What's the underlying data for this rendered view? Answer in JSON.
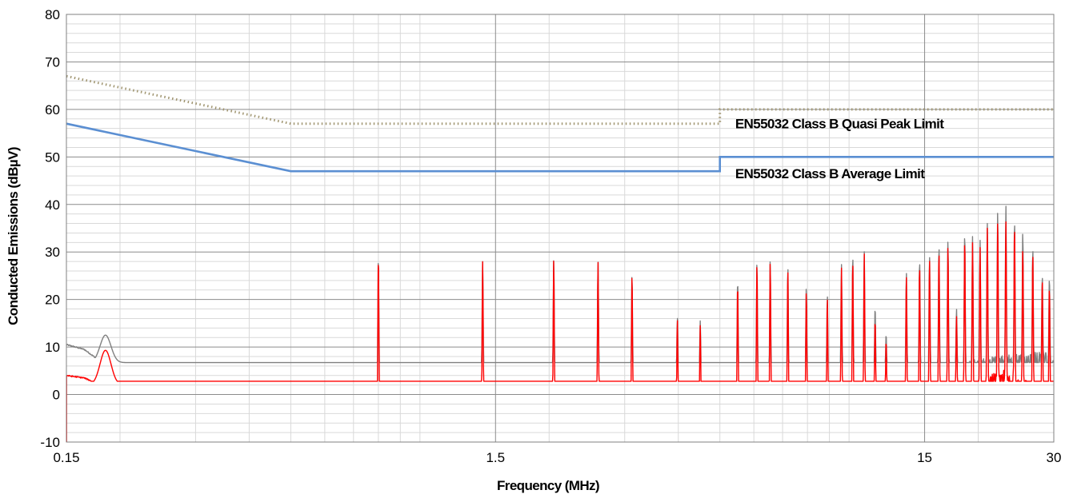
{
  "chart_data": {
    "type": "line",
    "xlabel": "Frequency (MHz)",
    "ylabel": "Conducted Emissions (dBµV)",
    "x_scale": "log",
    "xlim": [
      0.15,
      30
    ],
    "ylim": [
      -10,
      80
    ],
    "x_ticks": [
      0.15,
      1.5,
      15,
      30
    ],
    "x_tick_labels": [
      "0.15",
      "1.5",
      "15",
      "30"
    ],
    "y_ticks": [
      -10,
      0,
      10,
      20,
      30,
      40,
      50,
      60,
      70,
      80
    ],
    "y_tick_labels": [
      "-10",
      "0",
      "10",
      "20",
      "30",
      "40",
      "50",
      "60",
      "70",
      "80"
    ],
    "grid": true,
    "annotations": [
      {
        "text": "EN55032 Class B Quasi Peak Limit",
        "x": 5.2,
        "y": 57
      },
      {
        "text": "EN55032 Class B Average Limit",
        "x": 5.2,
        "y": 46.5
      }
    ],
    "series": [
      {
        "color": "#a09570",
        "style": "dotted",
        "points": [
          [
            0.15,
            67
          ],
          [
            0.5,
            57
          ],
          [
            5,
            57
          ],
          [
            5,
            60
          ],
          [
            30,
            60
          ]
        ]
      },
      {
        "color": "#5b8fd2",
        "style": "solid",
        "points": [
          [
            0.15,
            57
          ],
          [
            0.5,
            47
          ],
          [
            5,
            47
          ],
          [
            5,
            50
          ],
          [
            30,
            50
          ]
        ]
      },
      {
        "color": "#808080",
        "style": "solid",
        "baseline": [
          [
            0.15,
            10.5
          ],
          [
            0.165,
            9.5
          ],
          [
            0.18,
            7
          ],
          [
            0.22,
            5
          ],
          [
            0.3,
            3.5
          ],
          [
            0.5,
            2.7
          ],
          [
            1.0,
            2.8
          ],
          [
            2.0,
            3.5
          ],
          [
            2.5,
            3.8
          ],
          [
            4.0,
            2.6
          ],
          [
            8.0,
            3.0
          ],
          [
            12.0,
            3.5
          ],
          [
            16.0,
            4.5
          ],
          [
            20.0,
            5.5
          ],
          [
            25.0,
            6
          ],
          [
            30.0,
            6
          ]
        ],
        "peaks": [
          [
            0.185,
            12.5
          ],
          [
            0.255,
            4.5
          ],
          [
            0.3,
            6.5
          ],
          [
            0.36,
            3.5
          ],
          [
            0.42,
            3.8
          ]
        ],
        "spurs": [
          [
            0.8,
            29.2
          ],
          [
            1.4,
            28
          ],
          [
            2.05,
            28.5
          ],
          [
            2.6,
            28
          ],
          [
            3.12,
            25.3
          ],
          [
            3.98,
            16.2
          ],
          [
            4.5,
            15.5
          ],
          [
            5.5,
            24.2
          ],
          [
            6.1,
            28
          ],
          [
            6.55,
            28.4
          ],
          [
            7.2,
            27
          ],
          [
            7.95,
            22.7
          ],
          [
            8.9,
            21
          ],
          [
            9.6,
            27.5
          ],
          [
            10.2,
            29.5
          ],
          [
            10.85,
            30.1
          ],
          [
            11.5,
            18.5
          ],
          [
            12.2,
            12.8
          ],
          [
            13.6,
            25.8
          ],
          [
            14.6,
            28.5
          ],
          [
            15.4,
            29.2
          ],
          [
            16.2,
            31.6
          ],
          [
            17.0,
            32.7
          ],
          [
            17.8,
            18
          ],
          [
            18.6,
            34.3
          ],
          [
            19.4,
            33.3
          ],
          [
            20.2,
            32.5
          ],
          [
            21.0,
            36
          ],
          [
            22.2,
            38.7
          ],
          [
            23.2,
            39.8
          ],
          [
            24.3,
            37
          ],
          [
            25.4,
            34.6
          ],
          [
            26.8,
            31
          ],
          [
            28.2,
            25.2
          ],
          [
            29.3,
            24.8
          ]
        ]
      },
      {
        "color": "#ff0000",
        "style": "solid",
        "baseline": [
          [
            0.15,
            4
          ],
          [
            0.165,
            3.5
          ],
          [
            0.175,
            2.5
          ],
          [
            0.2,
            1.5
          ],
          [
            0.25,
            -2
          ],
          [
            0.3,
            -3.3
          ],
          [
            0.4,
            -3.7
          ],
          [
            0.8,
            -3.5
          ],
          [
            1.5,
            -3.3
          ],
          [
            2.0,
            -2.5
          ],
          [
            2.5,
            -3.2
          ],
          [
            4.0,
            -3.9
          ],
          [
            8.0,
            -3.7
          ],
          [
            12.0,
            -3.0
          ],
          [
            16.0,
            -1.5
          ],
          [
            20.0,
            1.0
          ],
          [
            23.0,
            3.0
          ],
          [
            26.0,
            0
          ],
          [
            30.0,
            -2
          ]
        ],
        "peaks": [
          [
            0.185,
            9.3
          ],
          [
            0.255,
            -1.5
          ],
          [
            0.3,
            1.2
          ],
          [
            0.36,
            -3.5
          ],
          [
            0.42,
            -3.0
          ]
        ],
        "spurs": [
          [
            0.8,
            29.2
          ],
          [
            1.4,
            28
          ],
          [
            2.05,
            28.5
          ],
          [
            2.6,
            28
          ],
          [
            3.12,
            25.3
          ],
          [
            3.98,
            15.8
          ],
          [
            4.5,
            14.5
          ],
          [
            5.5,
            23.5
          ],
          [
            6.1,
            27.7
          ],
          [
            6.55,
            28
          ],
          [
            7.2,
            26.5
          ],
          [
            7.95,
            21.9
          ],
          [
            8.9,
            20.5
          ],
          [
            9.6,
            26.8
          ],
          [
            10.2,
            28.5
          ],
          [
            10.85,
            29.6
          ],
          [
            11.5,
            16
          ],
          [
            12.2,
            11.5
          ],
          [
            13.6,
            25
          ],
          [
            14.6,
            27.5
          ],
          [
            15.4,
            28.5
          ],
          [
            16.2,
            30.5
          ],
          [
            17.0,
            31.5
          ],
          [
            17.8,
            16.5
          ],
          [
            18.6,
            33
          ],
          [
            19.4,
            32
          ],
          [
            20.2,
            31
          ],
          [
            21.0,
            35
          ],
          [
            22.2,
            36.5
          ],
          [
            23.2,
            36.5
          ],
          [
            24.3,
            35.8
          ],
          [
            25.4,
            31
          ],
          [
            26.8,
            30
          ],
          [
            28.2,
            24.5
          ],
          [
            29.3,
            23
          ]
        ]
      }
    ]
  }
}
